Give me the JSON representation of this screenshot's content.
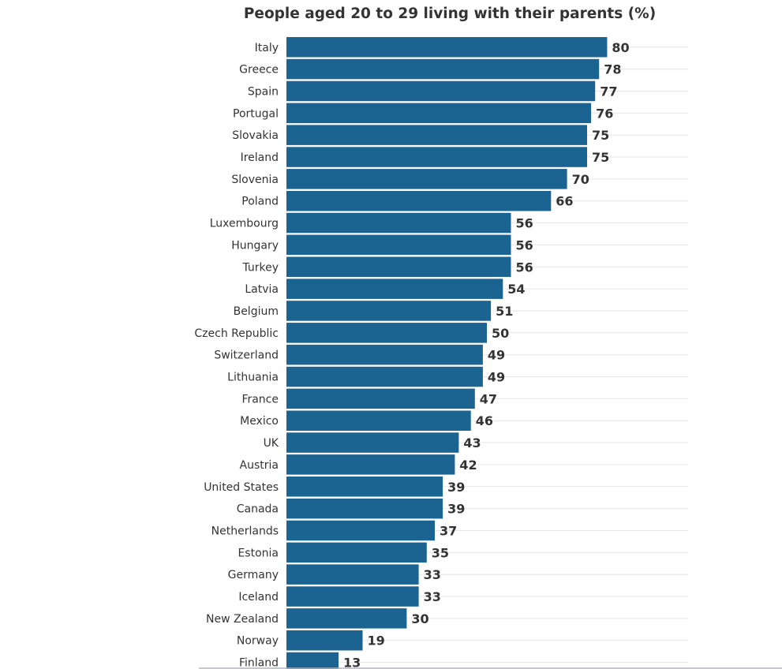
{
  "chart_data": {
    "type": "bar",
    "orientation": "horizontal",
    "title": "People aged 20 to 29 living with their parents (%)",
    "categories": [
      "Italy",
      "Greece",
      "Spain",
      "Portugal",
      "Slovakia",
      "Ireland",
      "Slovenia",
      "Poland",
      "Luxembourg",
      "Hungary",
      "Turkey",
      "Latvia",
      "Belgium",
      "Czech Republic",
      "Switzerland",
      "Lithuania",
      "France",
      "Mexico",
      "UK",
      "Austria",
      "United States",
      "Canada",
      "Netherlands",
      "Estonia",
      "Germany",
      "Iceland",
      "New Zealand",
      "Norway",
      "Finland"
    ],
    "values": [
      80,
      78,
      77,
      76,
      75,
      75,
      70,
      66,
      56,
      56,
      56,
      54,
      51,
      50,
      49,
      49,
      47,
      46,
      43,
      42,
      39,
      39,
      37,
      35,
      33,
      33,
      30,
      19,
      13
    ],
    "xlim": [
      0,
      100
    ],
    "grid": true,
    "bar_color": "#1b6491",
    "gridline_color": "#e6e6e6",
    "text_color": "#333333"
  }
}
